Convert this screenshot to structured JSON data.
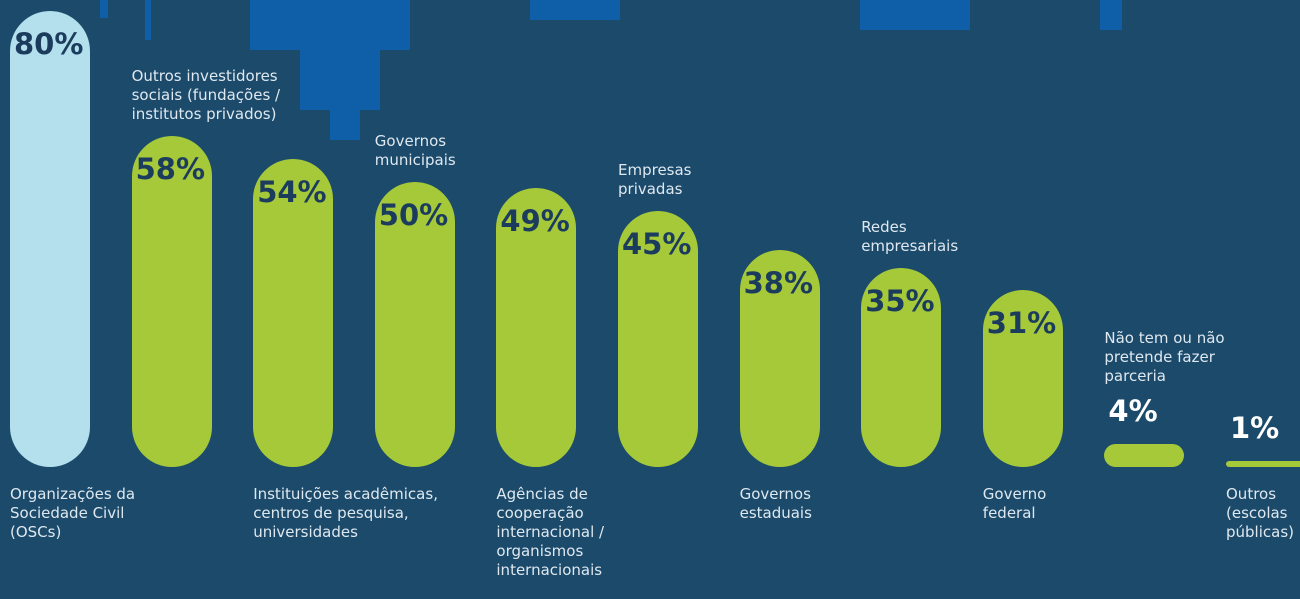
{
  "chart_data": {
    "type": "bar",
    "categories": [
      "Organizações da Sociedade Civil (OSCs)",
      "Outros investidores sociais (fundações / institutos privados)",
      "Instituições acadêmicas, centros de pesquisa, universidades",
      "Governos municipais",
      "Agências de cooperação internacional / organismos internacionais",
      "Empresas privadas",
      "Governos estaduais",
      "Redes empresariais",
      "Governo federal",
      "Não tem ou não pretende fazer parceria",
      "Outros (escolas públicas)"
    ],
    "values": [
      80,
      58,
      54,
      50,
      49,
      45,
      38,
      35,
      31,
      4,
      1
    ],
    "value_labels": [
      "80%",
      "58%",
      "54%",
      "50%",
      "49%",
      "45%",
      "38%",
      "35%",
      "31%",
      "4%",
      "1%"
    ],
    "colors": [
      "#b3e0ec",
      "#a6c939",
      "#a6c939",
      "#a6c939",
      "#a6c939",
      "#a6c939",
      "#a6c939",
      "#a6c939",
      "#a6c939",
      "#a6c939",
      "#a6c939"
    ]
  }
}
